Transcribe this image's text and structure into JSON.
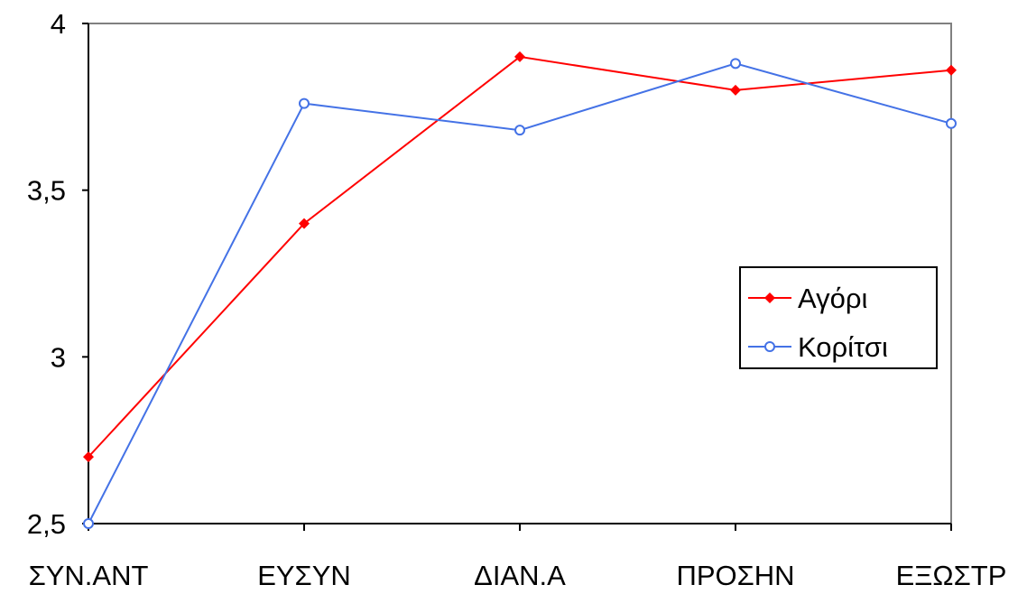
{
  "chart_data": {
    "type": "line",
    "categories": [
      "ΣΥΝ.ΑΝΤ",
      "ΕΥΣΥΝ",
      "ΔΙΑΝ.Α",
      "ΠΡΟΣΗΝ",
      "ΕΞΩΣΤΡ"
    ],
    "y_ticks": [
      "2,5",
      "3",
      "3,5",
      "4"
    ],
    "ylim": [
      2.5,
      4.0
    ],
    "series": [
      {
        "name": "Αγόρι",
        "color": "#ff0000",
        "marker": "diamond",
        "values": [
          2.7,
          3.4,
          3.9,
          3.8,
          3.86
        ]
      },
      {
        "name": "Κορίτσι",
        "color": "#4472e6",
        "marker": "circle",
        "values": [
          2.5,
          3.76,
          3.68,
          3.88,
          3.7
        ]
      }
    ],
    "title": "",
    "xlabel": "",
    "ylabel": "",
    "grid": false,
    "legend_position": "right"
  }
}
